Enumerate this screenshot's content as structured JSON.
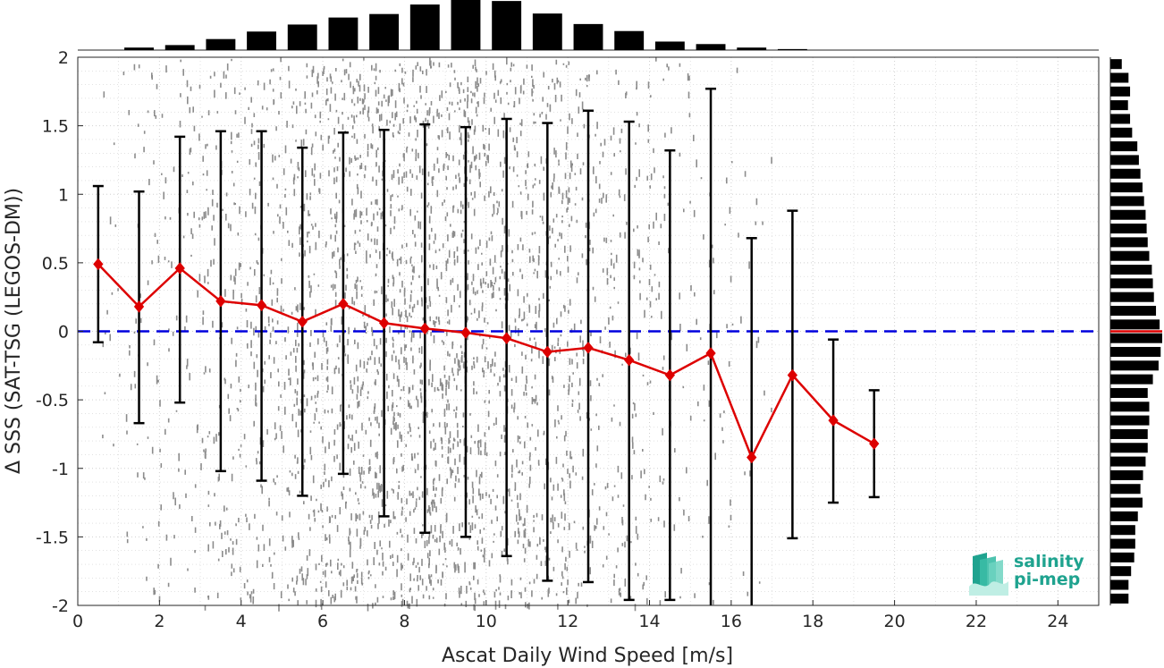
{
  "chart_data": {
    "type": "scatter",
    "title": "",
    "xlabel": "Ascat Daily Wind Speed [m/s]",
    "ylabel": "Δ SSS (SAT-TSG (LEGOS-DM))",
    "xlim": [
      0,
      25
    ],
    "ylim": [
      -2,
      2
    ],
    "xticks": [
      "0",
      "2",
      "4",
      "6",
      "8",
      "10",
      "12",
      "14",
      "16",
      "18",
      "20",
      "22",
      "24"
    ],
    "yticks": [
      "-2",
      "-1.5",
      "-1",
      "-0.5",
      "0",
      "0.5",
      "1",
      "1.5",
      "2"
    ],
    "grid": true,
    "zero_line": {
      "y": 0,
      "color": "#0000dd",
      "style": "dashed"
    },
    "binned_stats": {
      "x": [
        0.5,
        1.5,
        2.5,
        3.5,
        4.5,
        5.5,
        6.5,
        7.5,
        8.5,
        9.5,
        10.5,
        11.5,
        12.5,
        13.5,
        14.5,
        15.5,
        16.5,
        17.5,
        18.5,
        19.5
      ],
      "mean": [
        0.49,
        0.18,
        0.46,
        0.22,
        0.19,
        0.07,
        0.2,
        0.06,
        0.02,
        -0.01,
        -0.05,
        -0.15,
        -0.12,
        -0.21,
        -0.32,
        -0.16,
        -0.92,
        -0.32,
        -0.65,
        -0.82
      ],
      "upper": [
        1.06,
        1.02,
        1.42,
        1.46,
        1.46,
        1.34,
        1.45,
        1.47,
        1.51,
        1.49,
        1.55,
        1.52,
        1.61,
        1.53,
        1.32,
        1.77,
        0.68,
        0.88,
        -0.06,
        -0.43
      ],
      "lower": [
        -0.08,
        -0.67,
        -0.52,
        -1.02,
        -1.09,
        -1.2,
        -1.04,
        -1.35,
        -1.47,
        -1.5,
        -1.64,
        -1.82,
        -1.83,
        -1.96,
        -1.96,
        -2.2,
        -2.2,
        -1.51,
        -1.25,
        -1.21
      ],
      "line_color": "#dd0000",
      "errorbar_color": "#000000"
    },
    "scatter_density": {
      "color": "#808080",
      "x_range": [
        0,
        17
      ],
      "peak_x": 8.5
    },
    "top_histogram": {
      "bin_centers": [
        1.5,
        2.5,
        3.5,
        4.5,
        5.5,
        6.5,
        7.5,
        8.5,
        9.5,
        10.5,
        11.5,
        12.5,
        13.5,
        14.5,
        15.5,
        16.5,
        17.5
      ],
      "relative_counts": [
        0.05,
        0.1,
        0.22,
        0.37,
        0.51,
        0.65,
        0.72,
        0.91,
        1.0,
        0.98,
        0.73,
        0.52,
        0.38,
        0.17,
        0.12,
        0.05,
        0.02
      ]
    },
    "right_histogram": {
      "bin_centers": [
        1.95,
        1.85,
        1.75,
        1.65,
        1.55,
        1.45,
        1.35,
        1.25,
        1.15,
        1.05,
        0.95,
        0.85,
        0.75,
        0.65,
        0.55,
        0.45,
        0.35,
        0.25,
        0.15,
        0.05,
        -0.05,
        -0.15,
        -0.25,
        -0.35,
        -0.45,
        -0.55,
        -0.65,
        -0.75,
        -0.85,
        -0.95,
        -1.05,
        -1.15,
        -1.25,
        -1.35,
        -1.45,
        -1.55,
        -1.65,
        -1.75,
        -1.85,
        -1.95
      ],
      "relative_counts": [
        0.22,
        0.35,
        0.38,
        0.34,
        0.38,
        0.42,
        0.52,
        0.55,
        0.58,
        0.62,
        0.65,
        0.68,
        0.7,
        0.72,
        0.75,
        0.8,
        0.82,
        0.84,
        0.88,
        0.95,
        1.0,
        0.97,
        0.93,
        0.82,
        0.72,
        0.75,
        0.75,
        0.72,
        0.72,
        0.68,
        0.63,
        0.58,
        0.62,
        0.53,
        0.48,
        0.48,
        0.46,
        0.4,
        0.35,
        0.35
      ],
      "median_line": {
        "y": 0,
        "color": "#dd0000"
      }
    }
  },
  "logo": {
    "line1": "salinity",
    "line2": "pi-mep",
    "color": "#1fa38f"
  }
}
